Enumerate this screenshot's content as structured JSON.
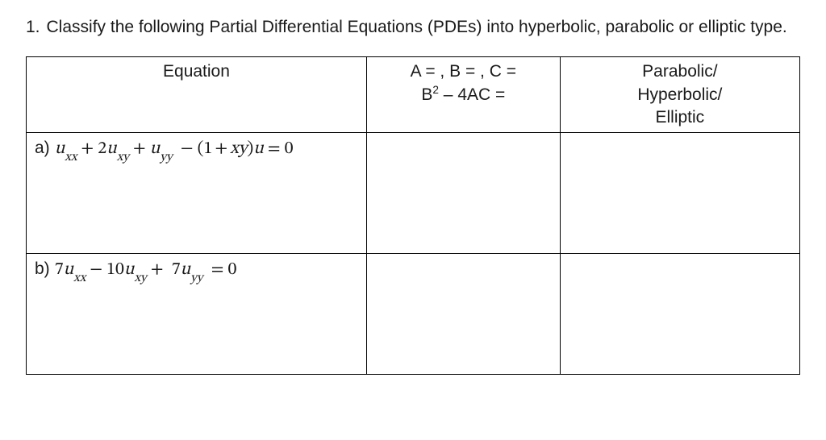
{
  "question": {
    "number": "1.",
    "text": "Classify the following Partial Differential Equations (PDEs) into hyperbolic, parabolic or elliptic type."
  },
  "table": {
    "headers": {
      "equation": "Equation",
      "disc_line1": "A = , B = , C =",
      "disc_line2_lhs": "B",
      "disc_line2_exp": "2",
      "disc_line2_rest": " – 4AC =",
      "class_line1": "Parabolic/",
      "class_line2": "Hyperbolic/",
      "class_line3": "Elliptic"
    },
    "row_a": {
      "label": "a)",
      "t1_var": "u",
      "t1_sub": "xx",
      "t2_op": "+",
      "t2_coef": "2",
      "t2_var": "u",
      "t2_sub": "xy",
      "t3_op": "+",
      "t3_var": "u",
      "t3_sub": "yy",
      "t4_op": "−",
      "t4_open": "(",
      "t4_one": "1",
      "t4_plus": "+",
      "t4_xy": "xy",
      "t4_close": ")",
      "t4_var": "u",
      "eq": "=",
      "zero": "0"
    },
    "row_b": {
      "label": "b)",
      "t1_coef": "7",
      "t1_var": "u",
      "t1_sub": "xx",
      "t2_op": "−",
      "t2_coef": "10",
      "t2_var": "u",
      "t2_sub": "xy",
      "t3_op": "+",
      "t3_coef": "7",
      "t3_var": "u",
      "t3_sub": "yy",
      "eq": "=",
      "zero": "0"
    }
  },
  "colors": {
    "text": "#1a1a1a",
    "background": "#ffffff",
    "border": "#000000"
  }
}
